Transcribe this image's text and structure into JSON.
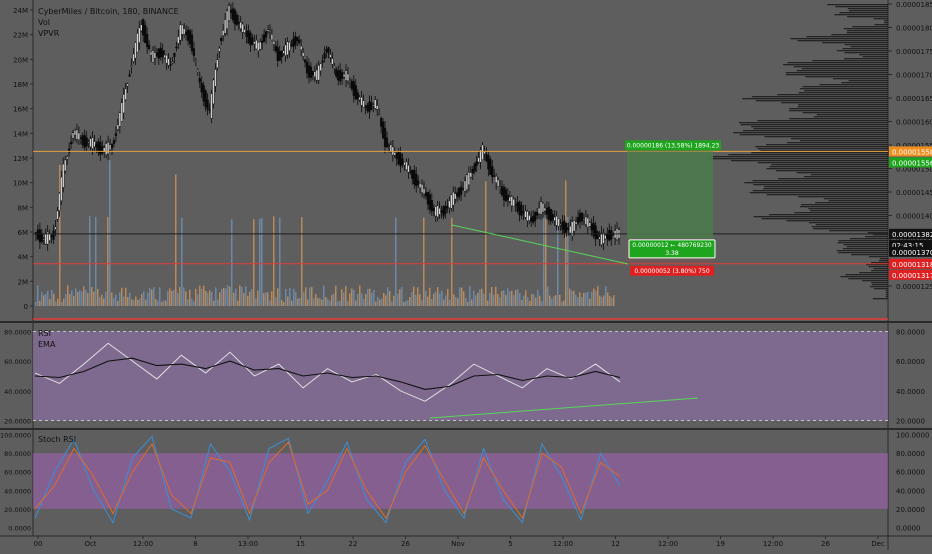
{
  "colors": {
    "background": "#5e5e5e",
    "candle": "#0a0a0a",
    "volume_up": "#c8925a",
    "volume_down": "#6f8fb4",
    "vpvr": "#1a1a1a",
    "trendline": "#59d659",
    "resistance": "#e6a23c",
    "support": "#e53935",
    "rsi_band": "#8a6fa0",
    "rsi_line": "#e8e8e8",
    "ema_line": "#111111",
    "stoch_k": "#3a8fd6",
    "stoch_d": "#e06b2b",
    "stoch_band": "#a060b0",
    "target_zone": "#4c7a4c",
    "price_tag_green": "#1ea51e",
    "price_tag_red": "#e02020",
    "price_tag_orange": "#ef8f1f",
    "current_tag": "#111111"
  },
  "header": {
    "symbol_line": "CyberMiles / Bitcoin, 180, BINANCE",
    "vol_label": "Vol",
    "vpvr_label": "VPVR"
  },
  "position_tool": {
    "target_label": "0.00000186 (13.58%) 1894.23",
    "entry_label_line1": "0.00000012 ← 480769230",
    "entry_label_line2": "3.38",
    "stop_label": "0.00000052 (3.80%) 750"
  },
  "price_tags": {
    "resistance_1": "0.00001558",
    "resistance_2": "0.00001556",
    "current": "0.00001382",
    "countdown": "02:43:15",
    "entry": "0.00001370",
    "support_1": "0.00001318",
    "support_2": "0.00001317"
  },
  "panes": {
    "rsi_title": "RSI",
    "ema_title": "EMA",
    "stoch_title": "Stoch RSI"
  },
  "chart_data": [
    {
      "type": "line",
      "name": "price",
      "title": "CyberMiles / Bitcoin, 180, BINANCE",
      "right_axis_ticks": [
        "0.00001850",
        "0.00001800",
        "0.00001750",
        "0.00001700",
        "0.00001650",
        "0.00001600",
        "0.00001550",
        "0.00001500",
        "0.00001450",
        "0.00001400",
        "0.00001350",
        "0.00001300",
        "0.00001250"
      ],
      "left_axis_ticks": [
        "24M",
        "22M",
        "20M",
        "18M",
        "16M",
        "14M",
        "12M",
        "10M",
        "8M",
        "6M",
        "4M",
        "2M",
        "0"
      ],
      "x_tick_labels": [
        "00",
        "Oct",
        "12:00",
        "8",
        "13:00",
        "15",
        "22",
        "26",
        "Nov",
        "5",
        "12:00",
        "12",
        "12:00",
        "19",
        "12:00",
        "26",
        "Dec"
      ],
      "ylim": [
        1.23e-05,
        1.86e-05
      ],
      "x": [
        0,
        2,
        4,
        6,
        8,
        10,
        12,
        14,
        16,
        18,
        20,
        22,
        24,
        26,
        28,
        30,
        32,
        34,
        36,
        38,
        40,
        42,
        44,
        46,
        48,
        50,
        52,
        54,
        56,
        58,
        60,
        62,
        64,
        66,
        68,
        70,
        72,
        74,
        76,
        78,
        80,
        82,
        84,
        86,
        88,
        90,
        92,
        94,
        96,
        98,
        100,
        102,
        104,
        106,
        108,
        110,
        112,
        114,
        116,
        118,
        120
      ],
      "values": [
        1.385e-05,
        1.37e-05,
        1.38e-05,
        1.52e-05,
        1.6e-05,
        1.58e-05,
        1.575e-05,
        1.56e-05,
        1.57e-05,
        1.65e-05,
        1.75e-05,
        1.83e-05,
        1.76e-05,
        1.77e-05,
        1.74e-05,
        1.82e-05,
        1.8e-05,
        1.7e-05,
        1.64e-05,
        1.79e-05,
        1.86e-05,
        1.83e-05,
        1.8e-05,
        1.78e-05,
        1.82e-05,
        1.76e-05,
        1.78e-05,
        1.8e-05,
        1.73e-05,
        1.72e-05,
        1.78e-05,
        1.72e-05,
        1.72e-05,
        1.68e-05,
        1.65e-05,
        1.66e-05,
        1.58e-05,
        1.55e-05,
        1.53e-05,
        1.5e-05,
        1.47e-05,
        1.43e-05,
        1.43e-05,
        1.46e-05,
        1.48e-05,
        1.52e-05,
        1.56e-05,
        1.51e-05,
        1.47e-05,
        1.45e-05,
        1.43e-05,
        1.41e-05,
        1.44e-05,
        1.42e-05,
        1.4e-05,
        1.39e-05,
        1.42e-05,
        1.4e-05,
        1.37e-05,
        1.38e-05,
        1.382e-05
      ],
      "levels": {
        "resistance": 1.558e-05,
        "current": 1.382e-05,
        "support": 1.318e-05
      }
    },
    {
      "type": "line",
      "name": "RSI",
      "right_axis_ticks": [
        "80.0000",
        "60.0000",
        "40.0000",
        "20.0000"
      ],
      "left_axis_ticks": [
        "80.0000",
        "60.0000",
        "40.0000",
        "20.0000"
      ],
      "ylim": [
        15,
        85
      ],
      "bands": [
        20,
        80
      ],
      "x": [
        0,
        5,
        10,
        15,
        20,
        25,
        30,
        35,
        40,
        45,
        50,
        55,
        60,
        65,
        70,
        75,
        80,
        85,
        90,
        95,
        100,
        105,
        110,
        115,
        120
      ],
      "series": [
        {
          "name": "RSI",
          "values": [
            52,
            45,
            58,
            72,
            60,
            48,
            64,
            52,
            66,
            50,
            58,
            42,
            55,
            46,
            51,
            40,
            33,
            44,
            58,
            50,
            42,
            55,
            48,
            58,
            46
          ]
        },
        {
          "name": "EMA",
          "values": [
            50,
            49,
            53,
            60,
            62,
            57,
            58,
            55,
            60,
            54,
            55,
            50,
            52,
            49,
            50,
            46,
            41,
            43,
            50,
            51,
            47,
            50,
            49,
            53,
            49
          ]
        }
      ]
    },
    {
      "type": "line",
      "name": "Stoch RSI",
      "right_axis_ticks": [
        "100.0000",
        "80.0000",
        "60.0000",
        "40.0000",
        "20.0000",
        "0.0000"
      ],
      "left_axis_ticks": [
        "100.0000",
        "80.0000",
        "60.0000",
        "40.0000",
        "20.0000",
        "0.0000"
      ],
      "ylim": [
        -5,
        105
      ],
      "bands": [
        20,
        80
      ],
      "x": [
        0,
        4,
        8,
        12,
        16,
        20,
        24,
        28,
        32,
        36,
        40,
        44,
        48,
        52,
        56,
        60,
        64,
        68,
        72,
        76,
        80,
        84,
        88,
        92,
        96,
        100,
        104,
        108,
        112,
        116,
        120
      ],
      "series": [
        {
          "name": "K",
          "values": [
            10,
            60,
            95,
            40,
            5,
            75,
            98,
            20,
            10,
            90,
            60,
            8,
            85,
            96,
            15,
            50,
            92,
            30,
            5,
            70,
            95,
            40,
            10,
            85,
            30,
            5,
            90,
            55,
            8,
            80,
            45
          ]
        },
        {
          "name": "D",
          "values": [
            20,
            45,
            85,
            55,
            15,
            60,
            90,
            35,
            15,
            75,
            70,
            15,
            70,
            92,
            25,
            40,
            85,
            40,
            10,
            60,
            88,
            50,
            15,
            75,
            40,
            10,
            80,
            65,
            15,
            70,
            55
          ]
        }
      ]
    }
  ]
}
